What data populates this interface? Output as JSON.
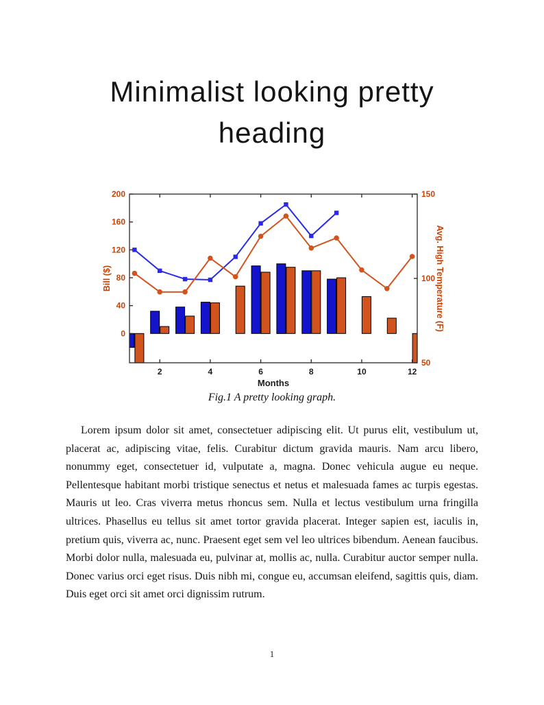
{
  "page": {
    "heading": "Minimalist looking pretty heading",
    "figure_caption": "Fig.1 A pretty looking graph.",
    "body_paragraph": "Lorem ipsum dolor sit amet, consectetuer adipiscing elit. Ut purus elit, vestibulum ut, placerat ac, adipiscing vitae, felis. Curabitur dictum gravida mauris. Nam arcu libero, nonummy eget, consectetuer id, vulputate a, magna. Donec vehicula augue eu neque. Pellentesque habitant morbi tristique senectus et netus et malesuada fames ac turpis egestas. Mauris ut leo. Cras viverra metus rhoncus sem. Nulla et lectus vestibulum urna fringilla ultrices. Phasellus eu tellus sit amet tortor gravida placerat. Integer sapien est, iaculis in, pretium quis, viverra ac, nunc. Praesent eget sem vel leo ultrices bibendum. Aenean faucibus. Morbi dolor nulla, malesuada eu, pulvinar at, mollis ac, nulla. Curabitur auctor semper nulla. Donec varius orci eget risus. Duis nibh mi, congue eu, accumsan eleifend, sagittis quis, diam. Duis eget orci sit amet orci dignissim rutrum.",
    "page_number": "1"
  },
  "chart_data": {
    "type": "bar",
    "subtype": "grouped bars with two overlay marker lines, dual y-axes",
    "title": "",
    "xlabel": "Months",
    "ylabel_left": "Bill ($)",
    "ylabel_right": "Avg. High Temperature (F)",
    "x": [
      1,
      2,
      3,
      4,
      5,
      6,
      7,
      8,
      9,
      10,
      11,
      12
    ],
    "xticks": [
      2,
      4,
      6,
      8,
      10,
      12
    ],
    "xlim": [
      0.8,
      12.2
    ],
    "left_axis": {
      "label": "Bill ($)",
      "ticks": [
        0,
        40,
        80,
        120,
        160,
        200
      ],
      "range": [
        -42,
        200
      ]
    },
    "right_axis": {
      "label": "Avg. High Temperature (F)",
      "ticks": [
        50,
        100,
        150
      ],
      "range": [
        50,
        150
      ]
    },
    "grid": false,
    "legend": "none",
    "series": [
      {
        "name": "bill-bars-blue",
        "type": "bar",
        "axis": "left",
        "color": "#1414cc",
        "values": [
          -20,
          32,
          38,
          45,
          0,
          97,
          100,
          90,
          78,
          0,
          0,
          0
        ]
      },
      {
        "name": "bars-orange",
        "type": "bar",
        "axis": "left",
        "color": "#d1531d",
        "values": [
          -45,
          10,
          25,
          44,
          68,
          88,
          95,
          90,
          80,
          53,
          22,
          -45
        ]
      },
      {
        "name": "bill-line-blue",
        "type": "line",
        "axis": "left",
        "marker": "square",
        "color": "#2a2ae6",
        "values": [
          120,
          90,
          78,
          77,
          110,
          158,
          185,
          140,
          173,
          null,
          null,
          null
        ]
      },
      {
        "name": "temperature-line",
        "type": "line",
        "axis": "right",
        "marker": "circle",
        "color": "#d1531d",
        "values": [
          103,
          92,
          92,
          112,
          101,
          125,
          137,
          118,
          124,
          105,
          94,
          113
        ]
      }
    ],
    "colors": {
      "axis_tick_orange": "#c64408",
      "x_tick_color": "#1c1c1c",
      "box": "#262626",
      "bar_blue": "#1414cc",
      "bar_orange": "#d1531d"
    }
  }
}
